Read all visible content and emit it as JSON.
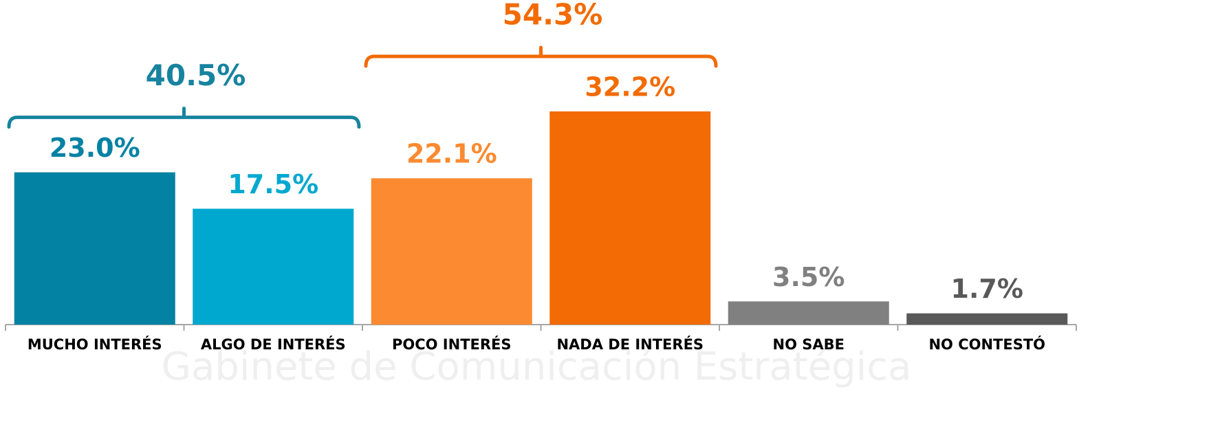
{
  "chart_data": {
    "type": "bar",
    "categories": [
      "MUCHO INTERÉS",
      "ALGO DE INTERÉS",
      "POCO INTERÉS",
      "NADA DE INTERÉS",
      "NO SABE",
      "NO CONTESTÓ"
    ],
    "values": [
      23.0,
      17.5,
      22.1,
      32.2,
      3.5,
      1.7
    ],
    "value_labels": [
      "23.0%",
      "17.5%",
      "22.1%",
      "32.2%",
      "3.5%",
      "1.7%"
    ],
    "colors": [
      "#0382a3",
      "#00a8d0",
      "#fb8a30",
      "#f26b04",
      "#808080",
      "#595959"
    ],
    "annotations": [
      {
        "text": "40.5%",
        "value": 40.5,
        "from": 0,
        "to": 1,
        "color": "#17839f"
      },
      {
        "text": "54.3%",
        "value": 54.3,
        "from": 2,
        "to": 3,
        "color": "#f26b04"
      }
    ],
    "watermark": "Gabinete de Comunicación Estratégica"
  }
}
